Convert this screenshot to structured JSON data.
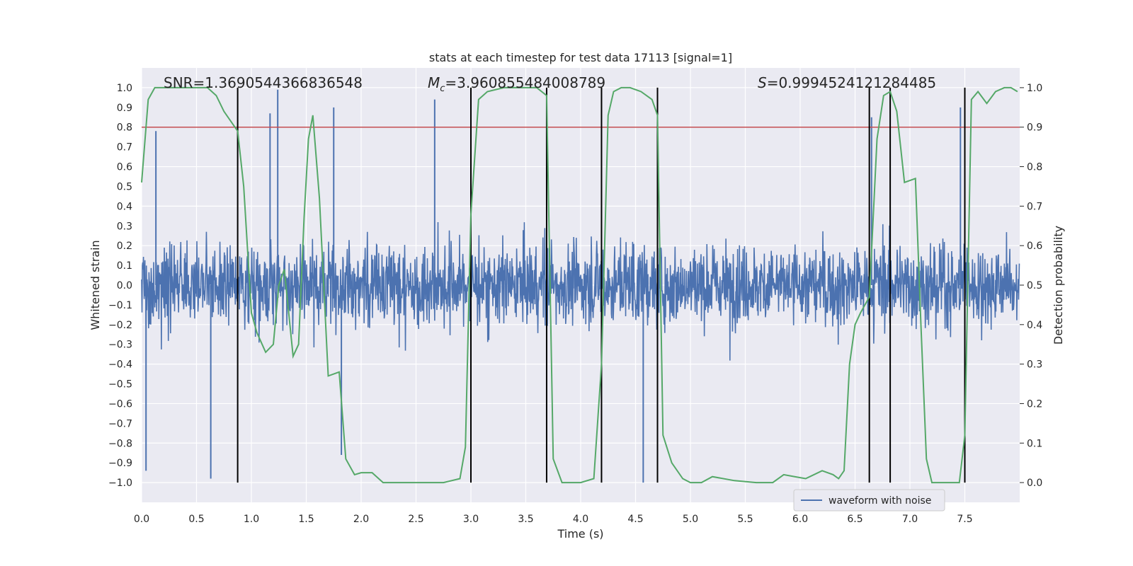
{
  "chart_data": {
    "type": "line",
    "title": "stats at each timestep for test data 17113 [signal=1]",
    "xlabel": "Time (s)",
    "ylabel": "Whitened strain",
    "ylabel_right": "Detection probability",
    "xlim": [
      0.0,
      8.0
    ],
    "ylim": [
      -1.1,
      1.1
    ],
    "ylim_right": [
      -0.05,
      1.05
    ],
    "x_ticks": [
      "0.0",
      "0.5",
      "1.0",
      "1.5",
      "2.0",
      "2.5",
      "3.0",
      "3.5",
      "4.0",
      "4.5",
      "5.0",
      "5.5",
      "6.0",
      "6.5",
      "7.0",
      "7.5"
    ],
    "y_ticks": [
      "1.0",
      "0.9",
      "0.8",
      "0.7",
      "0.6",
      "0.5",
      "0.4",
      "0.3",
      "0.2",
      "0.1",
      "0.0",
      "−0.1",
      "−0.2",
      "−0.3",
      "−0.4",
      "−0.5",
      "−0.6",
      "−0.7",
      "−0.8",
      "−0.9",
      "−1.0"
    ],
    "y_ticks_right": [
      "1.0",
      "0.9",
      "0.8",
      "0.7",
      "0.6",
      "0.5",
      "0.4",
      "0.3",
      "0.2",
      "0.1",
      "0.0"
    ],
    "grid": true,
    "threshold": 0.9,
    "threshold_color": "#c44e52",
    "waveform_color": "#4c72b0",
    "prob_color": "#55a868",
    "annotations": {
      "snr": "SNR=1.3690544366836548",
      "mc_prefix": "M",
      "mc_sub": "c",
      "mc_value": "=3.960855484008789",
      "s_prefix": "S",
      "s_value": "=0.9994524121284485"
    },
    "vlines": [
      0.875,
      3.0,
      3.69,
      4.19,
      4.7,
      6.63,
      6.82,
      7.5
    ],
    "legend": {
      "label": "waveform with noise",
      "position": "bottom-right"
    },
    "series": [
      {
        "name": "waveform with noise",
        "axis": "left",
        "style": "noise",
        "notable_extremes": [
          {
            "x": 0.04,
            "y": -0.94
          },
          {
            "x": 0.13,
            "y": 0.78
          },
          {
            "x": 0.63,
            "y": -0.98
          },
          {
            "x": 1.17,
            "y": 0.87
          },
          {
            "x": 1.24,
            "y": 0.99
          },
          {
            "x": 1.75,
            "y": 0.9
          },
          {
            "x": 1.82,
            "y": -0.86
          },
          {
            "x": 2.67,
            "y": 0.94
          },
          {
            "x": 4.57,
            "y": -1.0
          },
          {
            "x": 6.65,
            "y": 0.85
          },
          {
            "x": 7.46,
            "y": 0.9
          }
        ]
      },
      {
        "name": "Detection probability",
        "axis": "right",
        "x": [
          0.0,
          0.06,
          0.12,
          0.25,
          0.4,
          0.6,
          0.68,
          0.75,
          0.875,
          0.93,
          1.0,
          1.05,
          1.13,
          1.2,
          1.25,
          1.3,
          1.38,
          1.43,
          1.48,
          1.52,
          1.56,
          1.62,
          1.7,
          1.8,
          1.86,
          1.94,
          2.0,
          2.1,
          2.2,
          2.4,
          2.6,
          2.75,
          2.9,
          2.95,
          3.0,
          3.07,
          3.15,
          3.3,
          3.5,
          3.6,
          3.69,
          3.75,
          3.83,
          3.93,
          4.0,
          4.12,
          4.19,
          4.25,
          4.3,
          4.37,
          4.45,
          4.55,
          4.65,
          4.7,
          4.75,
          4.83,
          4.93,
          5.0,
          5.1,
          5.2,
          5.4,
          5.6,
          5.75,
          5.85,
          5.95,
          6.05,
          6.2,
          6.3,
          6.35,
          6.4,
          6.45,
          6.5,
          6.55,
          6.63,
          6.7,
          6.76,
          6.82,
          6.88,
          6.95,
          7.05,
          7.1,
          7.15,
          7.2,
          7.35,
          7.45,
          7.5,
          7.56,
          7.62,
          7.7,
          7.78,
          7.86,
          7.92,
          7.98
        ],
        "values": [
          0.76,
          0.97,
          1.0,
          1.0,
          1.0,
          1.0,
          0.98,
          0.94,
          0.89,
          0.75,
          0.43,
          0.38,
          0.33,
          0.35,
          0.5,
          0.54,
          0.32,
          0.35,
          0.67,
          0.87,
          0.93,
          0.72,
          0.27,
          0.28,
          0.06,
          0.02,
          0.025,
          0.025,
          0.0,
          0.0,
          0.0,
          0.0,
          0.01,
          0.09,
          0.68,
          0.97,
          0.99,
          1.0,
          1.0,
          1.0,
          0.98,
          0.06,
          0.0,
          0.0,
          0.0,
          0.01,
          0.3,
          0.93,
          0.99,
          1.0,
          1.0,
          0.99,
          0.97,
          0.93,
          0.12,
          0.05,
          0.01,
          0.0,
          0.0,
          0.015,
          0.005,
          0.0,
          0.0,
          0.02,
          0.015,
          0.01,
          0.03,
          0.02,
          0.01,
          0.03,
          0.3,
          0.4,
          0.43,
          0.47,
          0.87,
          0.98,
          0.99,
          0.94,
          0.76,
          0.77,
          0.4,
          0.06,
          0.0,
          0.0,
          0.0,
          0.12,
          0.97,
          0.99,
          0.96,
          0.99,
          1.0,
          1.0,
          0.99
        ]
      }
    ]
  }
}
